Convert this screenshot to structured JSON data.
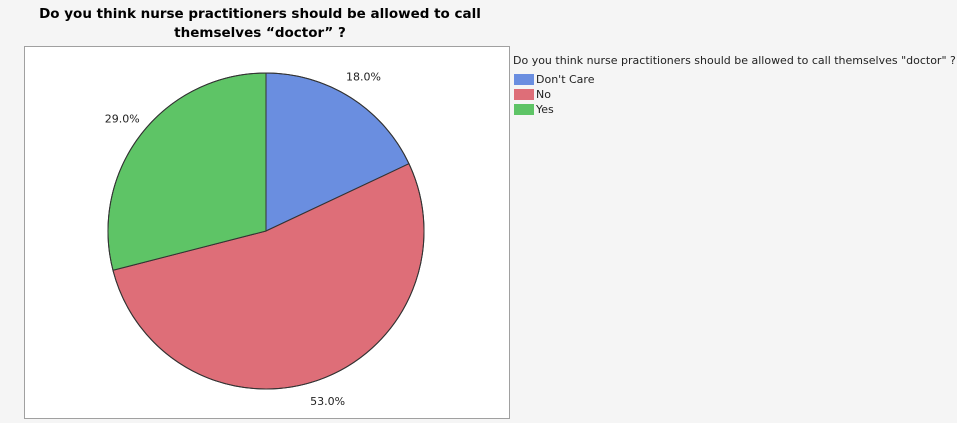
{
  "chart_data": {
    "type": "pie",
    "title": "Do you think nurse practitioners should be allowed to call themselves “doctor” ?",
    "legend_title": "Do you think nurse practitioners should be allowed to call themselves \"doctor\" ?",
    "categories": [
      "Don't Care",
      "No",
      "Yes"
    ],
    "values": [
      18,
      53,
      29
    ],
    "value_labels": [
      "18.0%",
      "53.0%",
      "29.0%"
    ],
    "colors": [
      "#6a8ee0",
      "#de6e78",
      "#5ec466"
    ],
    "legend": "right"
  }
}
